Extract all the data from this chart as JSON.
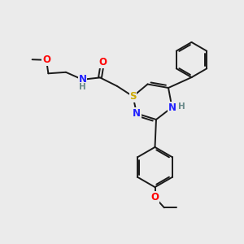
{
  "bg_color": "#ebebeb",
  "bond_color": "#1a1a1a",
  "atom_colors": {
    "N": "#2020ff",
    "O": "#ff0000",
    "S": "#ccaa00",
    "H": "#6a8a8a",
    "C": "#1a1a1a"
  },
  "bond_lw": 1.4,
  "font_size_atom": 8.5,
  "font_size_H": 7.5
}
